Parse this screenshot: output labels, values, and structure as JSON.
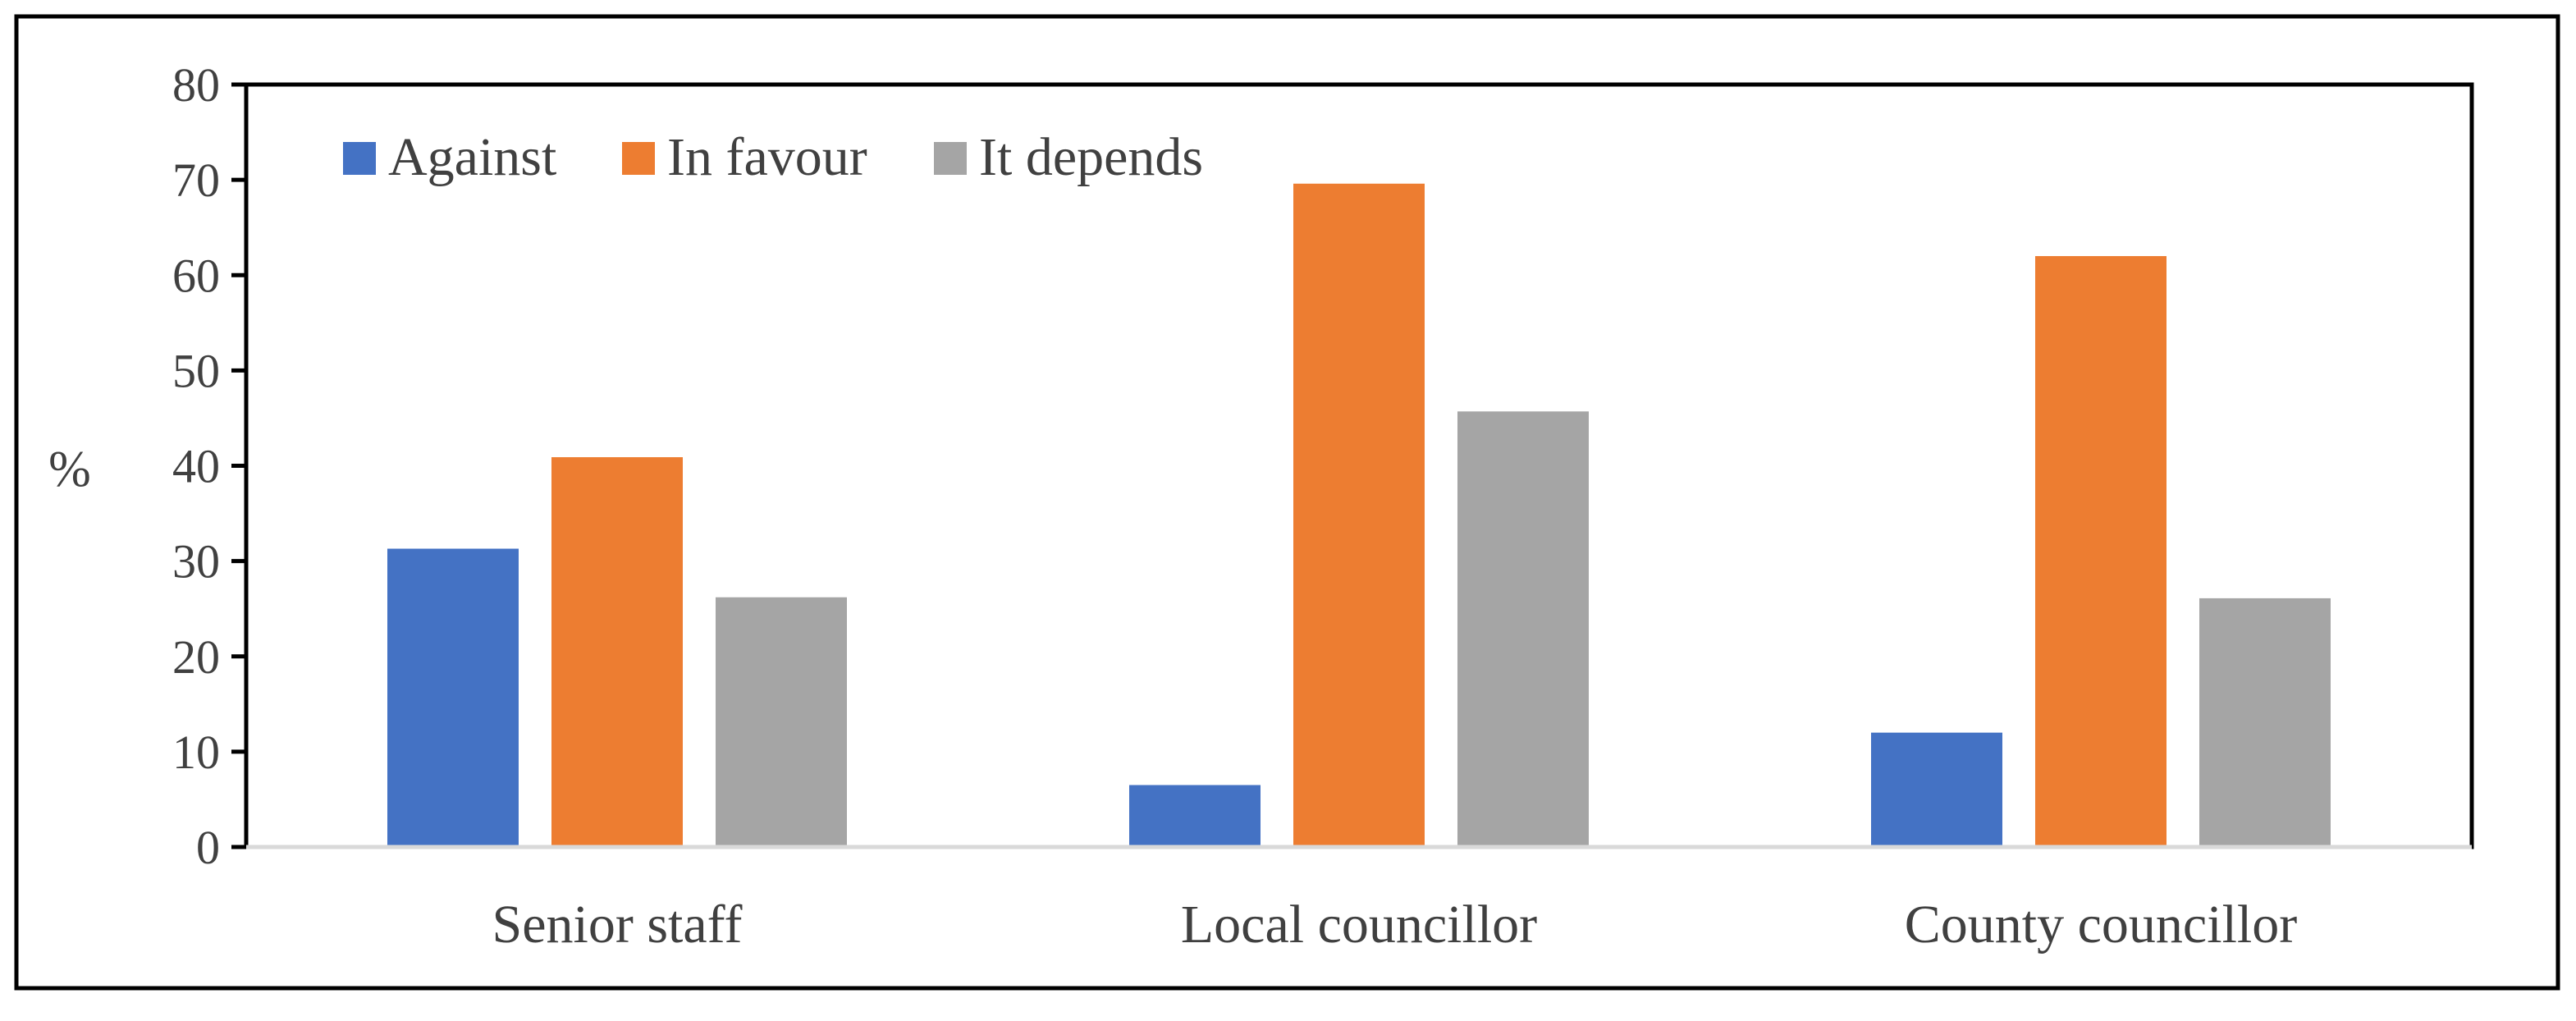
{
  "chart_data": {
    "type": "bar",
    "title": "",
    "xlabel": "",
    "ylabel": "%",
    "ylim": [
      0,
      80
    ],
    "yticks": [
      0,
      10,
      20,
      30,
      40,
      50,
      60,
      70,
      80
    ],
    "grid": false,
    "legend_position": "top-left",
    "categories": [
      "Senior staff",
      "Local councillor",
      "County councillor"
    ],
    "series": [
      {
        "name": "Against",
        "color": "#4472c4",
        "values": [
          31.3,
          6.5,
          12.0
        ]
      },
      {
        "name": "In favour",
        "color": "#ed7d31",
        "values": [
          40.9,
          69.6,
          62.0
        ]
      },
      {
        "name": "It depends",
        "color": "#a5a5a5",
        "values": [
          26.2,
          45.7,
          26.1
        ]
      }
    ]
  }
}
